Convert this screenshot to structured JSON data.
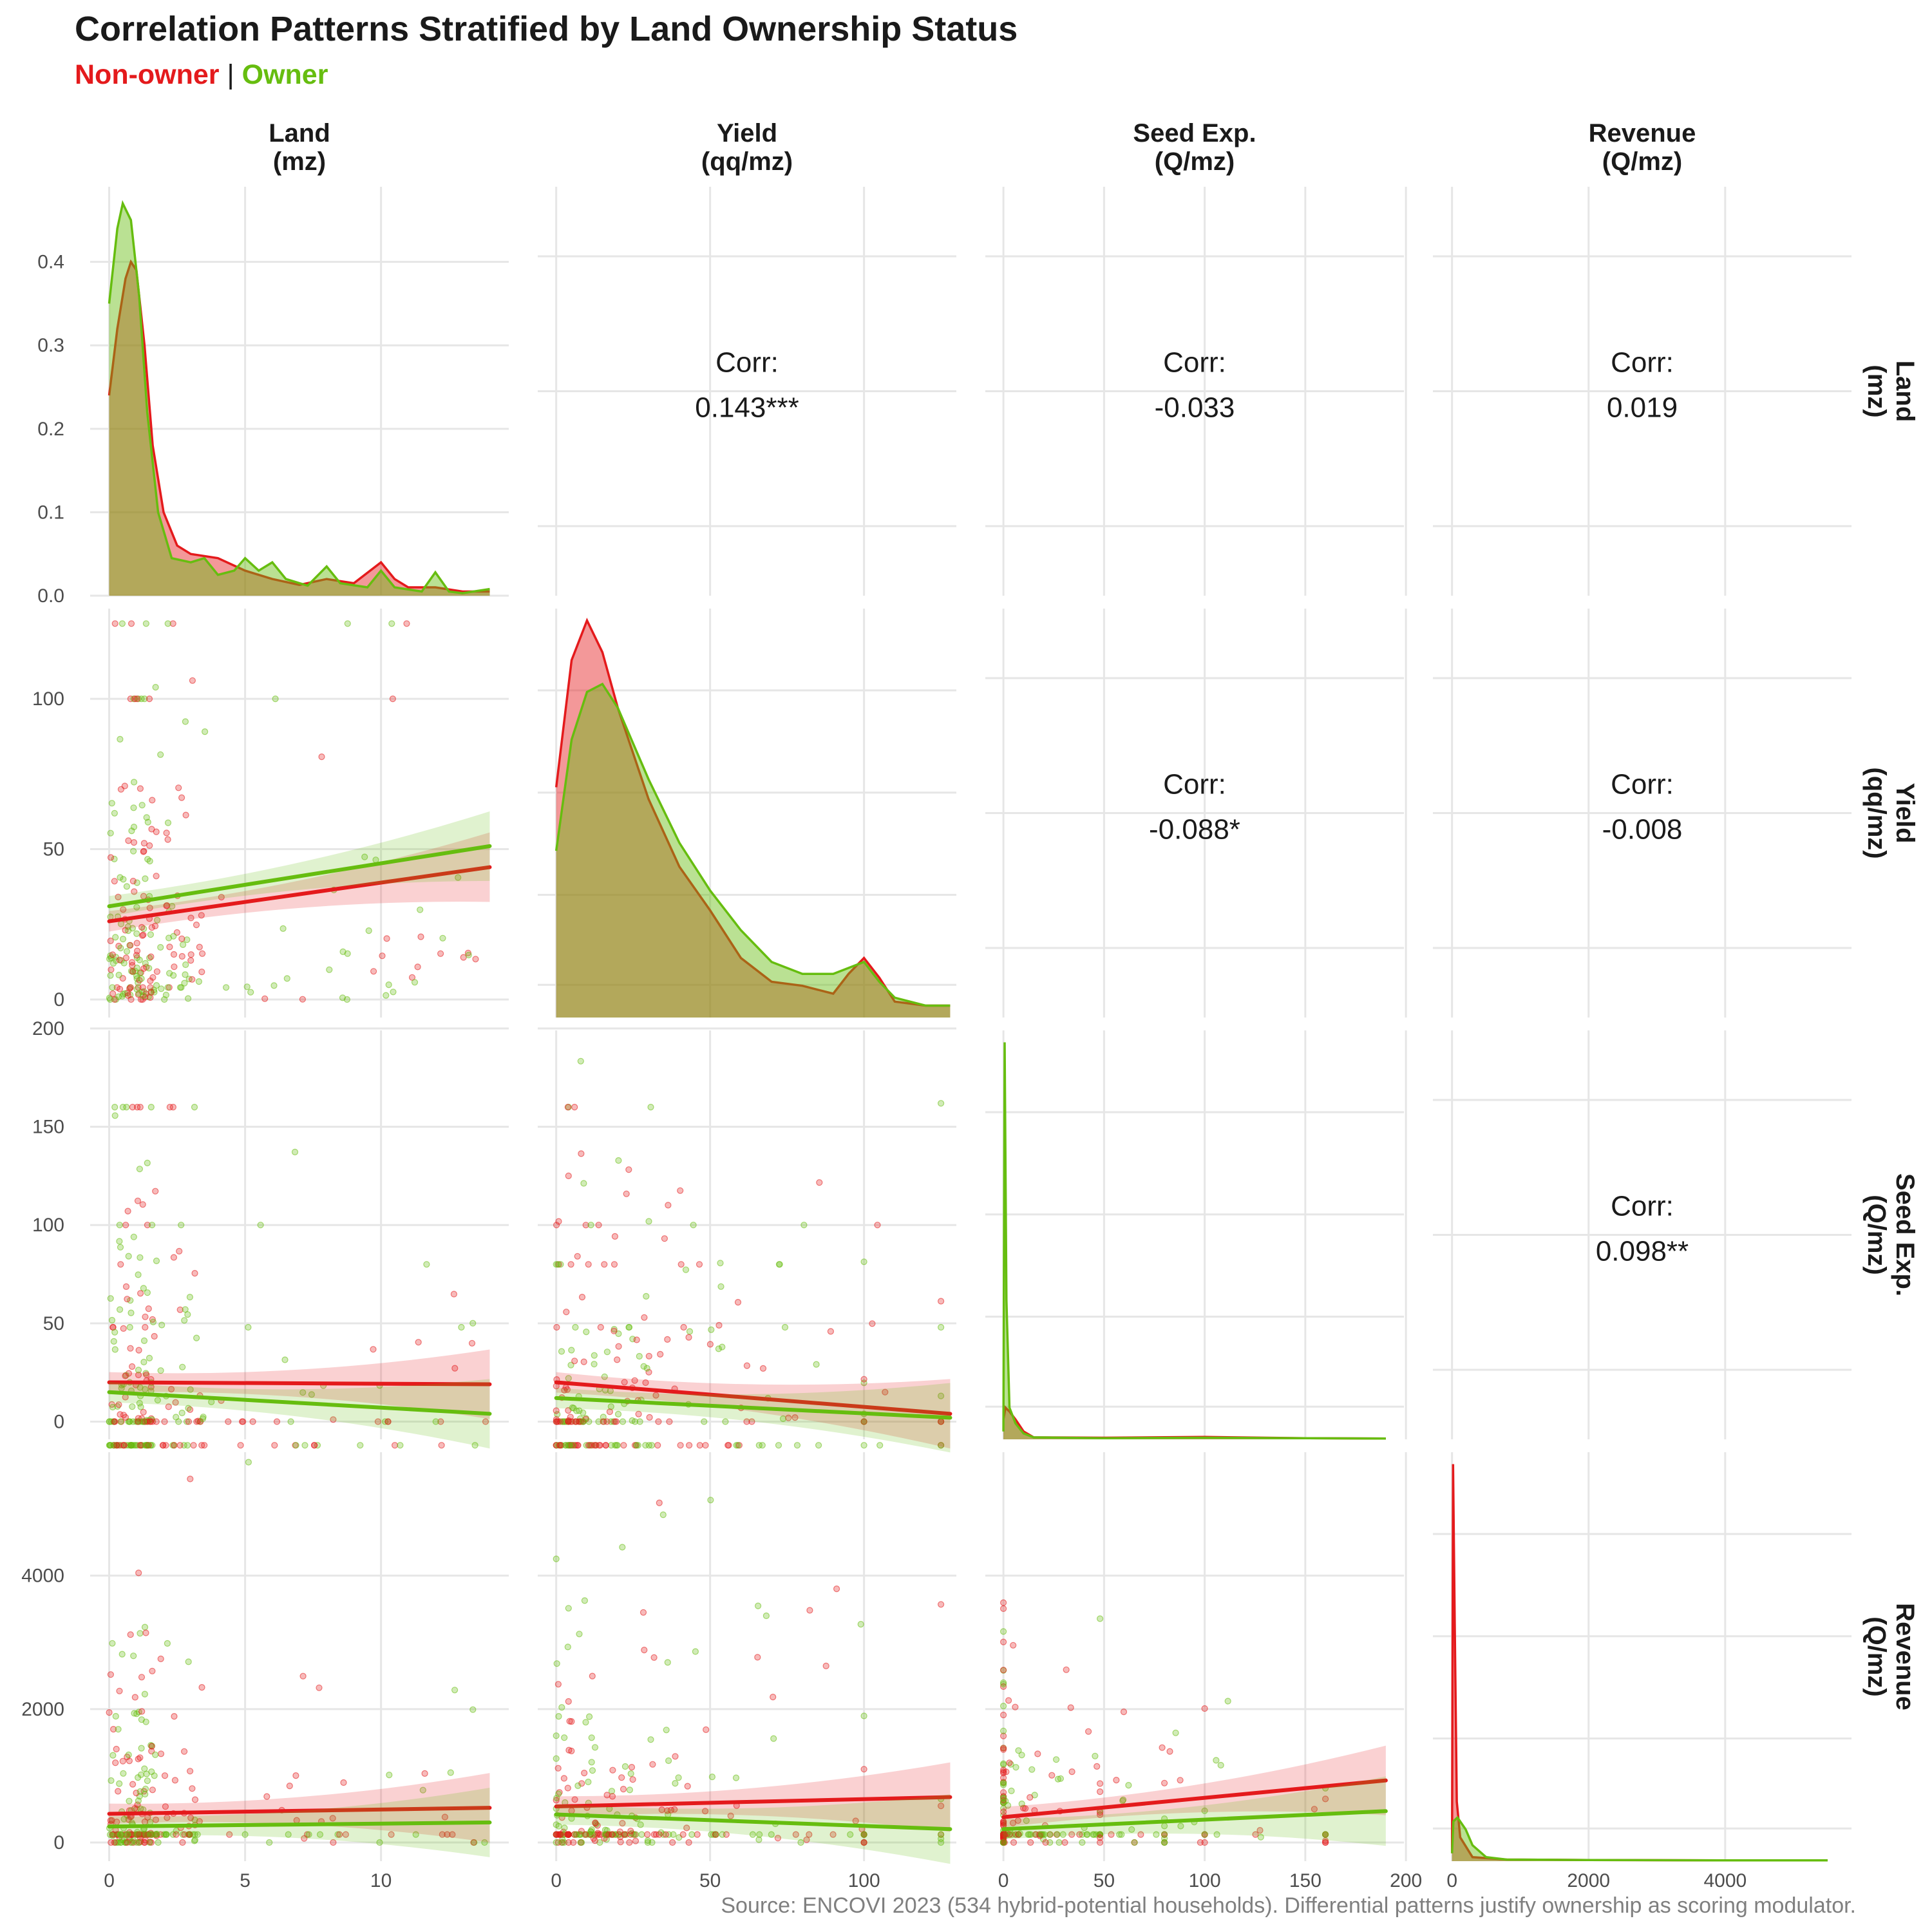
{
  "title": "Correlation Patterns Stratified by Land Ownership Status",
  "subtitle": {
    "non_owner": "Non-owner",
    "separator": " | ",
    "owner": "Owner"
  },
  "caption": "Source: ENCOVI 2023 (534 hybrid-potential households). Differential patterns justify ownership as scoring modulator.",
  "colors": {
    "non_owner": "#e41a1c",
    "owner": "#66bd0f",
    "grid": "#e6e6e6"
  },
  "chart_data": {
    "type": "pairs",
    "groups": [
      "Non-owner",
      "Owner"
    ],
    "variables": [
      {
        "key": "land",
        "label": [
          "Land",
          "(mz)"
        ],
        "range": [
          -0.7,
          14.7
        ],
        "ticks": [
          0,
          5,
          10
        ]
      },
      {
        "key": "yield",
        "label": [
          "Yield",
          "(qq/mz)"
        ],
        "range": [
          -6,
          130
        ],
        "ticks": [
          0,
          50,
          100
        ]
      },
      {
        "key": "seed",
        "label": [
          "Seed Exp.",
          "(Q/mz)"
        ],
        "range": [
          -9,
          199
        ],
        "ticks": [
          0,
          50,
          100,
          150,
          200
        ]
      },
      {
        "key": "revenue",
        "label": [
          "Revenue",
          "(Q/mz)"
        ],
        "range": [
          -280,
          5850
        ],
        "ticks": [
          0,
          2000,
          4000
        ]
      }
    ],
    "density_y": {
      "land": {
        "range": [
          0,
          0.49
        ],
        "ticks": [
          "0.0",
          "0.1",
          "0.2",
          "0.3",
          "0.4"
        ],
        "tick_values": [
          0,
          0.1,
          0.2,
          0.3,
          0.4
        ]
      }
    },
    "correlations": [
      {
        "row": 0,
        "col": 1,
        "label": "Corr:",
        "value": "0.143***"
      },
      {
        "row": 0,
        "col": 2,
        "label": "Corr:",
        "value": "-0.033"
      },
      {
        "row": 0,
        "col": 3,
        "label": "Corr:",
        "value": "0.019"
      },
      {
        "row": 1,
        "col": 2,
        "label": "Corr:",
        "value": "-0.088*"
      },
      {
        "row": 1,
        "col": 3,
        "label": "Corr:",
        "value": "-0.008"
      },
      {
        "row": 2,
        "col": 3,
        "label": "Corr:",
        "value": "0.098**"
      }
    ],
    "densities": {
      "land": {
        "Non-owner": [
          [
            0,
            0.24
          ],
          [
            0.3,
            0.32
          ],
          [
            0.6,
            0.38
          ],
          [
            0.8,
            0.4
          ],
          [
            1.0,
            0.39
          ],
          [
            1.3,
            0.3
          ],
          [
            1.6,
            0.18
          ],
          [
            2.0,
            0.1
          ],
          [
            2.5,
            0.06
          ],
          [
            3.0,
            0.05
          ],
          [
            4.0,
            0.045
          ],
          [
            5.0,
            0.03
          ],
          [
            6.0,
            0.02
          ],
          [
            7.0,
            0.013
          ],
          [
            8.0,
            0.02
          ],
          [
            9.0,
            0.015
          ],
          [
            10.0,
            0.04
          ],
          [
            10.5,
            0.02
          ],
          [
            11.0,
            0.01
          ],
          [
            12.0,
            0.01
          ],
          [
            13.0,
            0.005
          ],
          [
            14.0,
            0.005
          ]
        ],
        "Owner": [
          [
            0,
            0.35
          ],
          [
            0.3,
            0.44
          ],
          [
            0.5,
            0.47
          ],
          [
            0.8,
            0.45
          ],
          [
            1.1,
            0.36
          ],
          [
            1.4,
            0.22
          ],
          [
            1.8,
            0.1
          ],
          [
            2.3,
            0.045
          ],
          [
            3.0,
            0.04
          ],
          [
            3.5,
            0.045
          ],
          [
            4.0,
            0.025
          ],
          [
            4.6,
            0.03
          ],
          [
            5.0,
            0.045
          ],
          [
            5.5,
            0.03
          ],
          [
            6.0,
            0.04
          ],
          [
            6.5,
            0.02
          ],
          [
            7.3,
            0.012
          ],
          [
            8.0,
            0.035
          ],
          [
            8.5,
            0.015
          ],
          [
            9.5,
            0.01
          ],
          [
            10.0,
            0.03
          ],
          [
            10.5,
            0.01
          ],
          [
            11.5,
            0.005
          ],
          [
            12.0,
            0.028
          ],
          [
            12.5,
            0.005
          ],
          [
            13.0,
            0.003
          ],
          [
            14.0,
            0.008
          ]
        ]
      },
      "yield": {
        "Non-owner": [
          [
            0,
            0.58
          ],
          [
            5,
            0.9
          ],
          [
            10,
            1.0
          ],
          [
            15,
            0.92
          ],
          [
            20,
            0.78
          ],
          [
            30,
            0.55
          ],
          [
            40,
            0.38
          ],
          [
            50,
            0.27
          ],
          [
            60,
            0.15
          ],
          [
            70,
            0.09
          ],
          [
            80,
            0.08
          ],
          [
            90,
            0.06
          ],
          [
            95,
            0.11
          ],
          [
            100,
            0.15
          ],
          [
            105,
            0.1
          ],
          [
            110,
            0.04
          ],
          [
            120,
            0.03
          ],
          [
            128,
            0.03
          ]
        ],
        "Owner": [
          [
            0,
            0.42
          ],
          [
            5,
            0.7
          ],
          [
            10,
            0.82
          ],
          [
            15,
            0.84
          ],
          [
            20,
            0.78
          ],
          [
            30,
            0.6
          ],
          [
            40,
            0.44
          ],
          [
            50,
            0.32
          ],
          [
            60,
            0.22
          ],
          [
            70,
            0.14
          ],
          [
            80,
            0.11
          ],
          [
            90,
            0.11
          ],
          [
            100,
            0.14
          ],
          [
            105,
            0.09
          ],
          [
            110,
            0.05
          ],
          [
            120,
            0.03
          ],
          [
            128,
            0.03
          ]
        ]
      },
      "seed": {
        "Non-owner": [
          [
            0,
            0.05
          ],
          [
            1,
            0.08
          ],
          [
            3,
            0.07
          ],
          [
            6,
            0.05
          ],
          [
            10,
            0.02
          ],
          [
            15,
            0.005
          ],
          [
            50,
            0.004
          ],
          [
            100,
            0.006
          ],
          [
            150,
            0.003
          ],
          [
            190,
            0.002
          ]
        ],
        "Owner": [
          [
            0,
            0.02
          ],
          [
            0.6,
            1.0
          ],
          [
            1.5,
            0.35
          ],
          [
            3,
            0.08
          ],
          [
            6,
            0.04
          ],
          [
            10,
            0.015
          ],
          [
            15,
            0.005
          ],
          [
            50,
            0.003
          ],
          [
            100,
            0.004
          ],
          [
            150,
            0.003
          ],
          [
            190,
            0.002
          ]
        ]
      },
      "revenue": {
        "Non-owner": [
          [
            0,
            0.02
          ],
          [
            15,
            1.0
          ],
          [
            40,
            0.6
          ],
          [
            70,
            0.15
          ],
          [
            120,
            0.06
          ],
          [
            300,
            0.01
          ],
          [
            800,
            0.004
          ],
          [
            2000,
            0.003
          ],
          [
            4000,
            0.002
          ],
          [
            5500,
            0.002
          ]
        ],
        "Owner": [
          [
            0,
            0.02
          ],
          [
            20,
            0.1
          ],
          [
            80,
            0.11
          ],
          [
            200,
            0.08
          ],
          [
            300,
            0.04
          ],
          [
            500,
            0.01
          ],
          [
            800,
            0.004
          ],
          [
            2000,
            0.003
          ],
          [
            4000,
            0.002
          ],
          [
            5500,
            0.002
          ]
        ]
      }
    },
    "regression_lines": {
      "land_yield": {
        "Non-owner": [
          [
            0,
            26
          ],
          [
            14,
            44
          ]
        ],
        "Owner": [
          [
            0,
            31
          ],
          [
            14,
            51
          ]
        ]
      },
      "land_seed": {
        "Non-owner": [
          [
            0,
            20
          ],
          [
            14,
            19
          ]
        ],
        "Owner": [
          [
            0,
            15
          ],
          [
            14,
            4
          ]
        ]
      },
      "yield_seed": {
        "Non-owner": [
          [
            0,
            20
          ],
          [
            128,
            4
          ]
        ],
        "Owner": [
          [
            0,
            12
          ],
          [
            128,
            2
          ]
        ]
      },
      "land_revenue": {
        "Non-owner": [
          [
            0,
            430
          ],
          [
            14,
            520
          ]
        ],
        "Owner": [
          [
            0,
            240
          ],
          [
            14,
            300
          ]
        ]
      },
      "yield_revenue": {
        "Non-owner": [
          [
            0,
            540
          ],
          [
            128,
            680
          ]
        ],
        "Owner": [
          [
            0,
            420
          ],
          [
            128,
            200
          ]
        ]
      },
      "seed_revenue": {
        "Non-owner": [
          [
            0,
            380
          ],
          [
            190,
            930
          ]
        ],
        "Owner": [
          [
            0,
            200
          ],
          [
            190,
            470
          ]
        ]
      }
    }
  }
}
